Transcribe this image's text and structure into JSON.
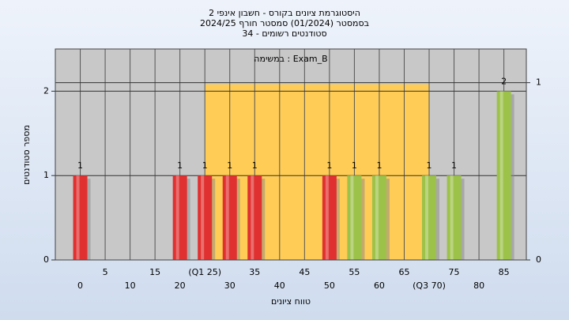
{
  "chart_data": {
    "type": "histogram",
    "title": [
      "היסטוגרמת ציונים בקורס - חשבון אינפי 2",
      "בסמסטר  (01/2024)  סמסטר חורף 2024/25",
      "סטודנטים רשומים - 34"
    ],
    "annotation": "במשימה : Exam_B",
    "x_label": "טווח ציונים",
    "y_label": "מספר סטודנטים",
    "x": [
      0,
      20,
      25,
      30,
      35,
      50,
      55,
      60,
      70,
      75,
      85
    ],
    "values": [
      1,
      1,
      1,
      1,
      1,
      1,
      1,
      1,
      1,
      1,
      2
    ],
    "colors": [
      "#e03030",
      "#e03030",
      "#e03030",
      "#e03030",
      "#e03030",
      "#e03030",
      "#9cc24a",
      "#9cc24a",
      "#9cc24a",
      "#9cc24a",
      "#9cc24a"
    ],
    "highlight": {
      "from": 25,
      "to": 70,
      "color": "#ffcc55"
    },
    "xlim": [
      -5,
      89.5
    ],
    "xticks": [
      0,
      5,
      10,
      15,
      20,
      {
        "value": 25,
        "label": "(Q1 25)"
      },
      30,
      35,
      40,
      45,
      50,
      55,
      60,
      65,
      {
        "value": 70,
        "label": "(Q3 70)"
      },
      75,
      80,
      85
    ],
    "ylim": [
      0,
      2.5
    ],
    "yticks": [
      0,
      1,
      2
    ],
    "y2lim": [
      0,
      1.19
    ],
    "y2ticks": [
      0,
      1
    ],
    "grid": true
  }
}
